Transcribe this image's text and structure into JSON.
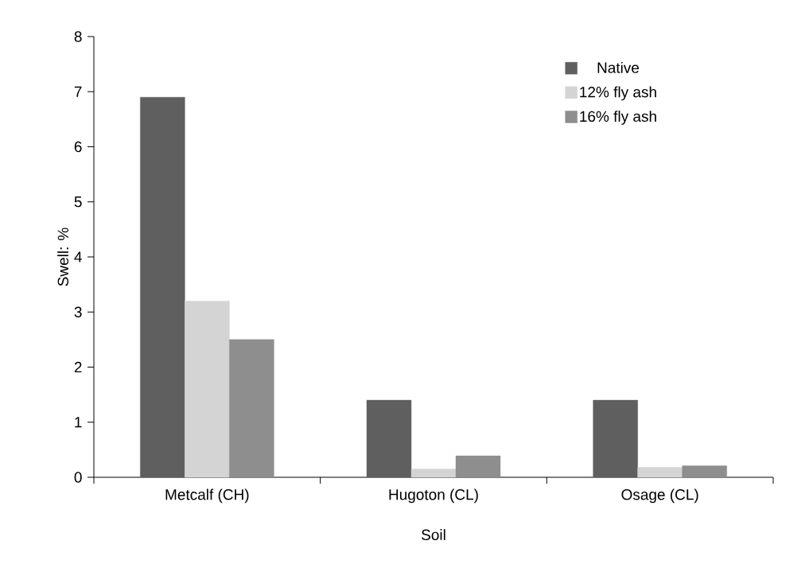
{
  "chart_data": {
    "type": "bar",
    "xlabel": "Soil",
    "ylabel": "Swell: %",
    "categories": [
      "Metcalf (CH)",
      "Hugoton (CL)",
      "Osage (CL)"
    ],
    "series": [
      {
        "name": "Native",
        "color": "#5f5f60",
        "values": [
          6.9,
          1.4,
          1.4
        ]
      },
      {
        "name": "12% fly ash",
        "color": "#d4d4d4",
        "values": [
          3.2,
          0.15,
          0.18
        ]
      },
      {
        "name": "16% fly ash",
        "color": "#8e8e8e",
        "values": [
          2.5,
          0.39,
          0.21
        ]
      }
    ],
    "ylim": [
      0,
      8
    ],
    "yticks": [
      0,
      1,
      2,
      3,
      4,
      5,
      6,
      7,
      8
    ],
    "grid": false,
    "legend": "top right"
  }
}
